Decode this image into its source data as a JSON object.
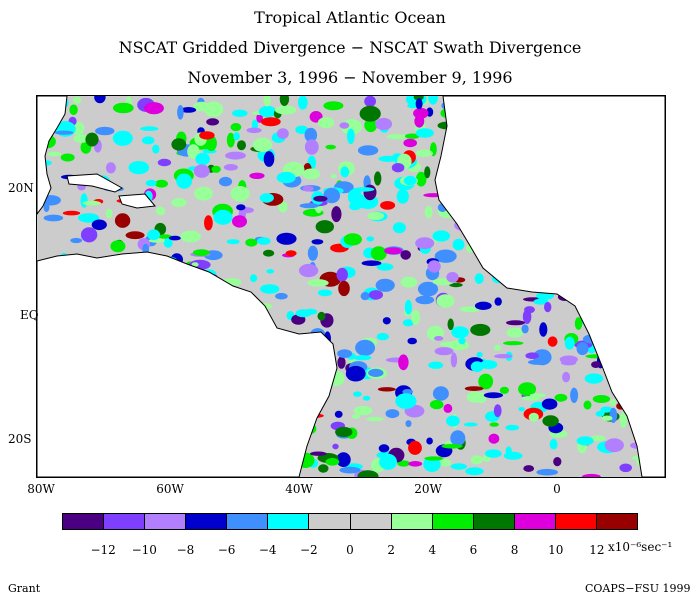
{
  "titles": {
    "line1": "Tropical Atlantic Ocean",
    "line2": "NSCAT Gridded Divergence − NSCAT Swath Divergence",
    "line3": "November 3, 1996 − November 9, 1996"
  },
  "map": {
    "lat_ticks": [
      "20N",
      "EQ",
      "20S"
    ],
    "lon_ticks": [
      "80W",
      "60W",
      "40W",
      "20W",
      "0"
    ],
    "land_color": "#ffffff",
    "ocean_background": "#cccccc"
  },
  "colorbar": {
    "colors": [
      "#4b0082",
      "#7f3fff",
      "#b27fff",
      "#0000cc",
      "#3f8fff",
      "#00ffff",
      "#cccccc",
      "#cccccc",
      "#99ff99",
      "#00ee00",
      "#007700",
      "#dd00dd",
      "#ff0000",
      "#990000"
    ],
    "labels": [
      "−12",
      "−10",
      "−8",
      "−6",
      "−4",
      "−2",
      "0",
      "2",
      "4",
      "6",
      "8",
      "10",
      "12"
    ],
    "units": "x10⁻⁶sec⁻¹"
  },
  "footer": {
    "left": "Grant",
    "right": "COAPS−FSU 1999"
  }
}
